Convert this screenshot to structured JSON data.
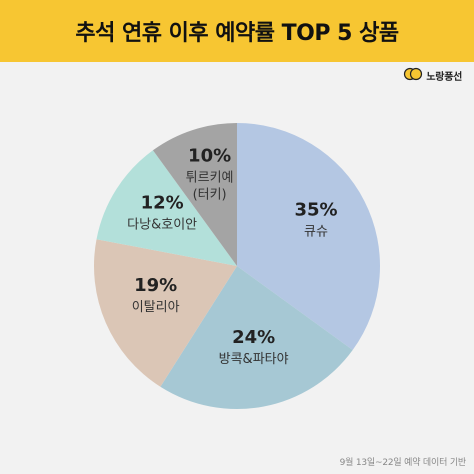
{
  "header": {
    "title": "추석 연휴 이후 예약률 TOP 5 상품"
  },
  "brand": {
    "name": "노랑풍선",
    "icon": "balloon-logo-icon",
    "color": "#f7c632"
  },
  "footnote": "9월 13일~22일 예약 데이터 기반",
  "chart_data": {
    "type": "pie",
    "title": "추석 연휴 이후 예약률 TOP 5 상품",
    "categories": [
      "큐슈",
      "방콕&파타야",
      "이탈리아",
      "다낭&호이안",
      "튀르키예\n(터키)"
    ],
    "values": [
      35,
      24,
      19,
      12,
      10
    ],
    "labels": [
      "35%",
      "24%",
      "19%",
      "12%",
      "10%"
    ],
    "colors": [
      "#b4c7e3",
      "#a6c8d4",
      "#dbc6b6",
      "#b3e0da",
      "#a4a4a4"
    ],
    "start": "12 o'clock",
    "direction": "clockwise",
    "legend": "none"
  }
}
